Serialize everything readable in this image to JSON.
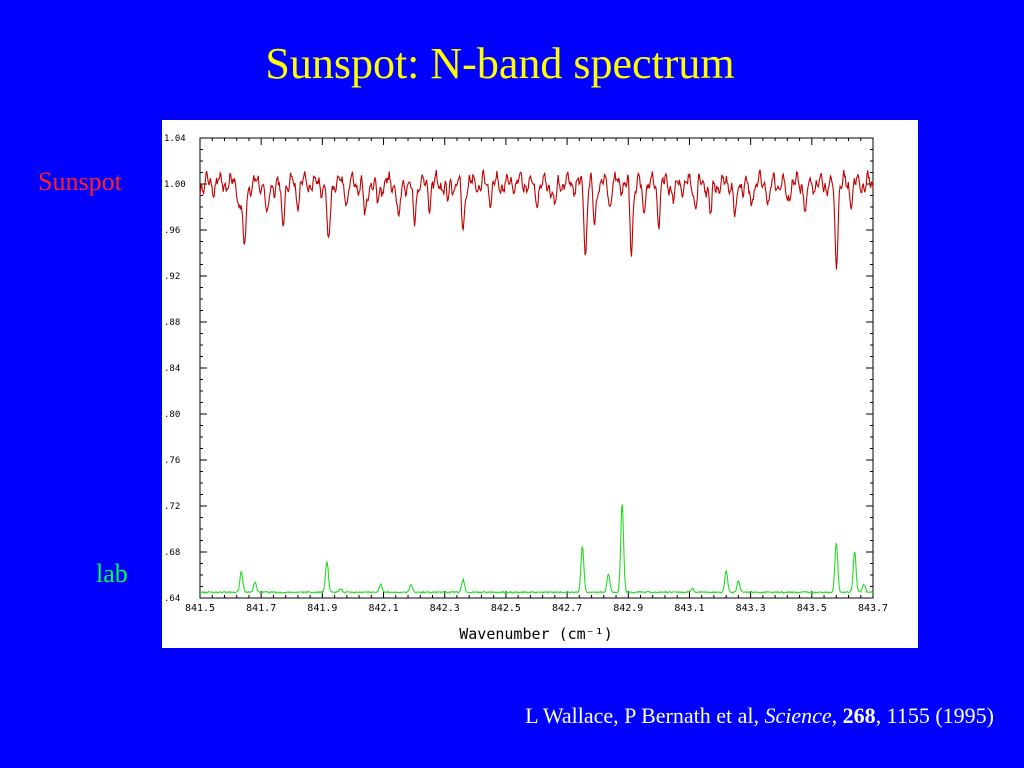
{
  "slide": {
    "title": "Sunspot: N-band spectrum",
    "background_color": "#0000ff",
    "title_color": "#ffff00"
  },
  "labels": {
    "sunspot": "Sunspot",
    "lab": "lab"
  },
  "citation": {
    "authors": "L Wallace, P Bernath et al, ",
    "journal": "Science",
    "sep1": ", ",
    "volume": "268",
    "rest": ", 1155 (1995)"
  },
  "chart_data": {
    "type": "line",
    "xlabel": "Wavenumber (cm⁻¹)",
    "xlim": [
      841.5,
      843.7
    ],
    "ylim": [
      0.64,
      1.04
    ],
    "x_ticks": [
      "841.5",
      "841.7",
      "841.9",
      "842.1",
      "842.3",
      "842.5",
      "842.7",
      "842.9",
      "843.1",
      "843.3",
      "843.5",
      "843.7"
    ],
    "y_ticks": [
      ".64",
      ".68",
      ".72",
      ".76",
      ".80",
      ".84",
      ".88",
      ".92",
      ".96",
      "1.00",
      "1.04"
    ],
    "series": [
      {
        "color": "#c00000",
        "baseline": 1.0,
        "features": [
          {
            "x": 841.63,
            "y": 0.979
          },
          {
            "x": 841.645,
            "y": 0.936
          },
          {
            "x": 841.72,
            "y": 0.966
          },
          {
            "x": 841.77,
            "y": 0.963
          },
          {
            "x": 841.82,
            "y": 0.985
          },
          {
            "x": 841.92,
            "y": 0.942
          },
          {
            "x": 841.98,
            "y": 0.985
          },
          {
            "x": 842.04,
            "y": 0.968
          },
          {
            "x": 842.08,
            "y": 0.984
          },
          {
            "x": 842.15,
            "y": 0.966
          },
          {
            "x": 842.2,
            "y": 0.966
          },
          {
            "x": 842.25,
            "y": 0.985
          },
          {
            "x": 842.31,
            "y": 0.982
          },
          {
            "x": 842.36,
            "y": 0.961
          },
          {
            "x": 842.45,
            "y": 0.99
          },
          {
            "x": 842.6,
            "y": 0.986
          },
          {
            "x": 842.66,
            "y": 0.978
          },
          {
            "x": 842.76,
            "y": 0.942
          },
          {
            "x": 842.79,
            "y": 0.965
          },
          {
            "x": 842.84,
            "y": 0.983
          },
          {
            "x": 842.91,
            "y": 0.94
          },
          {
            "x": 842.95,
            "y": 0.975
          },
          {
            "x": 843.0,
            "y": 0.97
          },
          {
            "x": 843.05,
            "y": 0.985
          },
          {
            "x": 843.12,
            "y": 0.984
          },
          {
            "x": 843.17,
            "y": 0.972
          },
          {
            "x": 843.25,
            "y": 0.968
          },
          {
            "x": 843.3,
            "y": 0.98
          },
          {
            "x": 843.36,
            "y": 0.985
          },
          {
            "x": 843.42,
            "y": 0.984
          },
          {
            "x": 843.48,
            "y": 0.975
          },
          {
            "x": 843.58,
            "y": 0.929
          },
          {
            "x": 843.63,
            "y": 0.988
          }
        ]
      },
      {
        "color": "#22dd22",
        "baseline": 0.645,
        "features": [
          {
            "x": 841.635,
            "y": 0.663
          },
          {
            "x": 841.68,
            "y": 0.654
          },
          {
            "x": 841.915,
            "y": 0.672
          },
          {
            "x": 841.96,
            "y": 0.648
          },
          {
            "x": 842.09,
            "y": 0.652
          },
          {
            "x": 842.19,
            "y": 0.652
          },
          {
            "x": 842.36,
            "y": 0.656
          },
          {
            "x": 842.75,
            "y": 0.685
          },
          {
            "x": 842.835,
            "y": 0.661
          },
          {
            "x": 842.88,
            "y": 0.723
          },
          {
            "x": 843.11,
            "y": 0.648
          },
          {
            "x": 843.22,
            "y": 0.664
          },
          {
            "x": 843.26,
            "y": 0.655
          },
          {
            "x": 843.58,
            "y": 0.688
          },
          {
            "x": 843.64,
            "y": 0.681
          },
          {
            "x": 843.67,
            "y": 0.652
          }
        ]
      }
    ]
  }
}
